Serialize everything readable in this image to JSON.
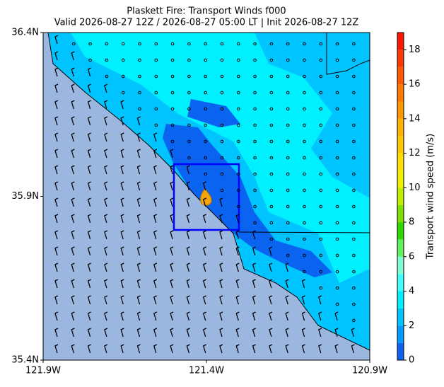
{
  "chart_data": {
    "type": "map",
    "title": "Plaskett Fire: Transport Winds f000",
    "subtitle": "Valid 2026-08-27 12Z / 2026-08-27 05:00 LT | Init 2026-08-27 12Z",
    "xlim": [
      -121.9,
      -120.9
    ],
    "xticks": [
      {
        "value": -121.9,
        "label": "121.9W"
      },
      {
        "value": -121.4,
        "label": "121.4W"
      },
      {
        "value": -120.9,
        "label": "120.9W"
      }
    ],
    "ylim": [
      35.4,
      36.4
    ],
    "yticks": [
      {
        "value": 35.4,
        "label": "35.4N"
      },
      {
        "value": 35.9,
        "label": "35.9N"
      },
      {
        "value": 36.4,
        "label": "36.4N"
      }
    ],
    "colorbar": {
      "label": "Transport wind speed (m/s)",
      "lim": [
        0,
        19
      ],
      "ticks": [
        0,
        2,
        4,
        6,
        8,
        10,
        12,
        14,
        16,
        18
      ],
      "colors": [
        "#0a64f0",
        "#009cff",
        "#00c4ff",
        "#00f0ff",
        "#40ffff",
        "#80ffd0",
        "#60f060",
        "#30d800",
        "#80e000",
        "#c0f000",
        "#f0f000",
        "#ffe000",
        "#ffc800",
        "#ffb000",
        "#ff9800",
        "#ff7800",
        "#ff5800",
        "#ff3800",
        "#ff1800"
      ]
    }
  }
}
